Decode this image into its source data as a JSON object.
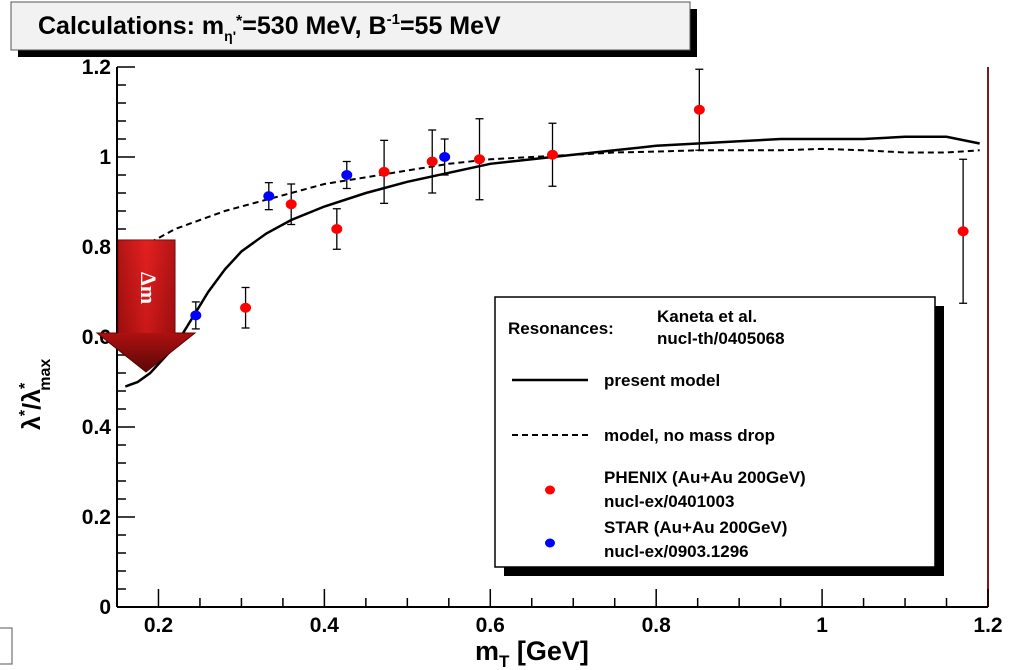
{
  "chart_data": {
    "type": "scatter",
    "title": {
      "main": "Calculations: m",
      "sub1": "η'",
      "sup1": "*",
      "mid": "=530 MeV, B",
      "sup2": "-1",
      "end": "=55 MeV"
    },
    "xlabel": {
      "main": "m",
      "sub": "T",
      "unit": " [GeV]"
    },
    "ylabel": {
      "a": "λ",
      "a_sup": "*",
      "slash": "/λ",
      "b_sup": "*",
      "b_sub": "max"
    },
    "xlim": [
      0.15,
      1.2
    ],
    "ylim": [
      0,
      1.2
    ],
    "x_ticks": [
      {
        "v": 0.2,
        "label": "0.2"
      },
      {
        "v": 0.4,
        "label": "0.4"
      },
      {
        "v": 0.6,
        "label": "0.6"
      },
      {
        "v": 0.8,
        "label": "0.8"
      },
      {
        "v": 1.0,
        "label": "1"
      },
      {
        "v": 1.2,
        "label": "1.2"
      }
    ],
    "y_ticks": [
      {
        "v": 0,
        "label": "0"
      },
      {
        "v": 0.2,
        "label": "0.2"
      },
      {
        "v": 0.4,
        "label": "0.4"
      },
      {
        "v": 0.6,
        "label": "0.6"
      },
      {
        "v": 0.8,
        "label": "0.8"
      },
      {
        "v": 1.0,
        "label": "1"
      },
      {
        "v": 1.2,
        "label": "1.2"
      }
    ],
    "grid": false,
    "legend_position": "bottom-right",
    "legend": {
      "header": "Resonances:",
      "header_ref1": "Kaneta et al.",
      "header_ref2": "nucl-th/0405068",
      "entries": [
        {
          "kind": "solid",
          "label": "present model"
        },
        {
          "kind": "dashed",
          "label": "model, no mass drop"
        },
        {
          "kind": "marker",
          "color": "#ff0000",
          "label": "PHENIX (Au+Au 200GeV)",
          "label2": "nucl-ex/0401003"
        },
        {
          "kind": "marker",
          "color": "#0000ff",
          "label": "STAR (Au+Au 200GeV)",
          "label2": "nucl-ex/0903.1296"
        }
      ]
    },
    "annotation": {
      "text": "Δm",
      "color": "#cc1010"
    },
    "series": [
      {
        "name": "present model",
        "style": "solid",
        "color": "#000000",
        "x": [
          0.16,
          0.175,
          0.19,
          0.205,
          0.22,
          0.24,
          0.26,
          0.28,
          0.3,
          0.33,
          0.36,
          0.4,
          0.45,
          0.5,
          0.55,
          0.6,
          0.65,
          0.7,
          0.75,
          0.8,
          0.85,
          0.9,
          0.95,
          1.0,
          1.05,
          1.1,
          1.15,
          1.19
        ],
        "y": [
          0.49,
          0.5,
          0.52,
          0.55,
          0.58,
          0.64,
          0.7,
          0.75,
          0.79,
          0.83,
          0.86,
          0.89,
          0.92,
          0.945,
          0.965,
          0.985,
          0.995,
          1.005,
          1.015,
          1.025,
          1.03,
          1.035,
          1.04,
          1.04,
          1.04,
          1.045,
          1.045,
          1.03
        ]
      },
      {
        "name": "model, no mass drop",
        "style": "dashed",
        "color": "#000000",
        "x": [
          0.19,
          0.22,
          0.25,
          0.28,
          0.32,
          0.36,
          0.4,
          0.45,
          0.5,
          0.55,
          0.6,
          0.65,
          0.7,
          0.75,
          0.8,
          0.85,
          0.9,
          0.95,
          1.0,
          1.05,
          1.1,
          1.15,
          1.19
        ],
        "y": [
          0.81,
          0.84,
          0.86,
          0.88,
          0.9,
          0.92,
          0.94,
          0.955,
          0.97,
          0.985,
          0.995,
          1.0,
          1.005,
          1.01,
          1.012,
          1.015,
          1.015,
          1.015,
          1.018,
          1.015,
          1.01,
          1.01,
          1.015
        ]
      },
      {
        "name": "PHENIX (Au+Au 200GeV)",
        "style": "points",
        "color": "#ff0000",
        "points": [
          {
            "x": 0.305,
            "y": 0.665,
            "err": 0.045
          },
          {
            "x": 0.36,
            "y": 0.895,
            "err": 0.045
          },
          {
            "x": 0.415,
            "y": 0.84,
            "err": 0.045
          },
          {
            "x": 0.472,
            "y": 0.967,
            "err": 0.07
          },
          {
            "x": 0.53,
            "y": 0.99,
            "err": 0.07
          },
          {
            "x": 0.587,
            "y": 0.995,
            "err": 0.09
          },
          {
            "x": 0.675,
            "y": 1.005,
            "err": 0.07
          },
          {
            "x": 0.852,
            "y": 1.105,
            "err": 0.09
          },
          {
            "x": 1.17,
            "y": 0.835,
            "err": 0.16
          }
        ]
      },
      {
        "name": "STAR (Au+Au 200GeV)",
        "style": "points",
        "color": "#0000ff",
        "points": [
          {
            "x": 0.245,
            "y": 0.648,
            "err": 0.03
          },
          {
            "x": 0.333,
            "y": 0.913,
            "err": 0.03
          },
          {
            "x": 0.427,
            "y": 0.96,
            "err": 0.03
          },
          {
            "x": 0.545,
            "y": 1.0,
            "err": 0.04
          }
        ]
      }
    ]
  }
}
